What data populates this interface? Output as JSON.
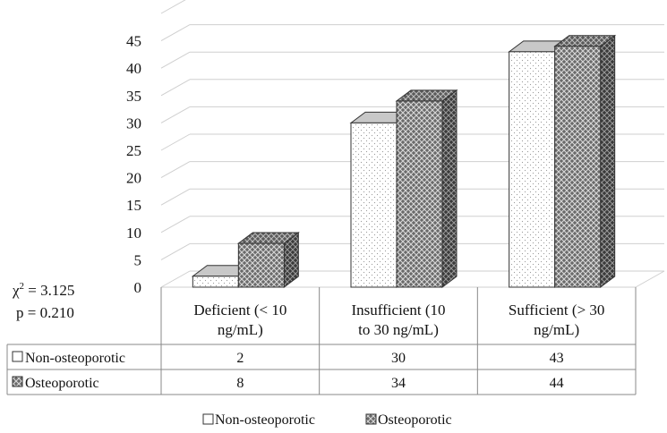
{
  "chart_data": {
    "type": "bar",
    "style": "3d-clustered-column-with-data-table",
    "categories": [
      "Deficient (< 10 ng/mL)",
      "Insufficient (10 to 30 ng/mL)",
      "Sufficient (> 30 ng/mL)"
    ],
    "category_lines": [
      [
        "Deficient (< 10",
        "ng/mL)"
      ],
      [
        "Insufficient (10",
        "to 30 ng/mL)"
      ],
      [
        "Sufficient (> 30",
        "ng/mL)"
      ]
    ],
    "series": [
      {
        "name": "Non-osteoporotic",
        "values": [
          2,
          30,
          43
        ],
        "pattern": "dotted-white"
      },
      {
        "name": "Osteoporotic",
        "values": [
          8,
          34,
          44
        ],
        "pattern": "crosshatch-dark"
      }
    ],
    "table_values": [
      [
        "2",
        "30",
        "43"
      ],
      [
        "8",
        "34",
        "44"
      ]
    ],
    "yticks": [
      "0",
      "5",
      "10",
      "15",
      "20",
      "25",
      "30",
      "35",
      "40",
      "45"
    ],
    "ylim": [
      0,
      50
    ],
    "grid": true,
    "legend_position": "bottom",
    "annotation": {
      "chi_label": "χ",
      "chi_sup": "2",
      "chi_value": " = 3.125",
      "p_text": "p = 0.210"
    },
    "colors": {
      "grid": "#cfcfcf",
      "axis": "#888888",
      "dark_bar": "#444444",
      "light_bar": "#ffffff"
    }
  }
}
